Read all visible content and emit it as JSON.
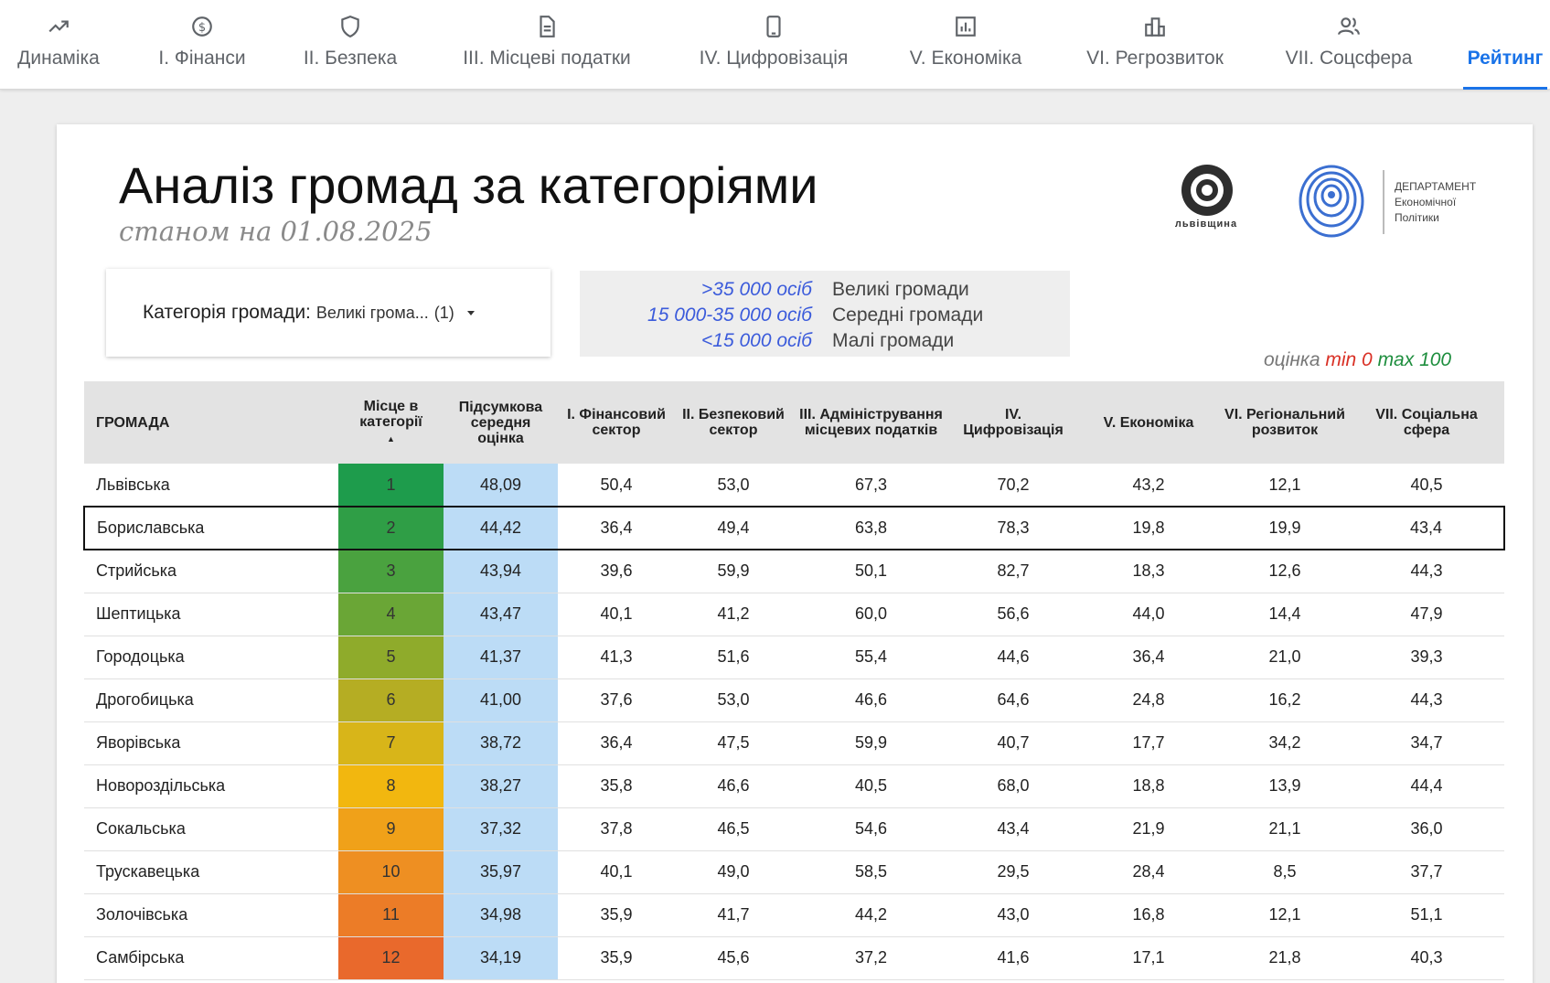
{
  "nav": {
    "tabs": [
      {
        "label": "Динаміка",
        "icon": "trend-icon",
        "active": false
      },
      {
        "label": "І. Фінанси",
        "icon": "coin-icon",
        "active": false
      },
      {
        "label": "ІІ. Безпека",
        "icon": "shield-icon",
        "active": false
      },
      {
        "label": "ІІІ. Місцеві податки",
        "icon": "document-icon",
        "active": false
      },
      {
        "label": "IV. Цифровізація",
        "icon": "phone-icon",
        "active": false
      },
      {
        "label": "V. Економіка",
        "icon": "chart-box-icon",
        "active": false
      },
      {
        "label": "VI. Регрозвиток",
        "icon": "buildings-icon",
        "active": false
      },
      {
        "label": "VII. Соцсфера",
        "icon": "people-icon",
        "active": false
      },
      {
        "label": "Рейтинг",
        "icon": "",
        "active": true
      }
    ],
    "accent": "#1a73e8"
  },
  "header": {
    "title": "Аналіз громад за категоріями",
    "subtitle": "станом на 01.08.2025"
  },
  "logos": {
    "lviv_text": "львівщина",
    "dept_lines": [
      "ДЕПАРТАМЕНТ",
      "Економічної",
      "Політики"
    ]
  },
  "filter": {
    "label": "Категорія громади:",
    "value": "Великі грома...",
    "count": "(1)"
  },
  "legend": [
    {
      "range": ">35 000 осіб",
      "name": "Великі громади"
    },
    {
      "range": "15 000-35 000 осіб",
      "name": "Середні громади"
    },
    {
      "range": "<15 000 осіб",
      "name": "Малі громади"
    }
  ],
  "score": {
    "prefix": "оцінка",
    "min_label": "min 0",
    "max_label": "max 100"
  },
  "table": {
    "columns": [
      "ГРОМАДА",
      "Місце в категорії",
      "Підсумкова середня оцінка",
      "І. Фінансовий сектор",
      "ІІ. Безпековий сектор",
      "ІІІ. Адміністрування місцевих податків",
      "IV. Цифровізація",
      "V. Економіка",
      "VI. Регіональний розвиток",
      "VII. Соціальна сфера"
    ],
    "rows": [
      {
        "name": "Львівська",
        "rank": "1",
        "avg": "48,09",
        "v": [
          "50,4",
          "53,0",
          "67,3",
          "70,2",
          "43,2",
          "12,1",
          "40,5"
        ],
        "color": "#1e9c4c"
      },
      {
        "name": "Бориславська",
        "rank": "2",
        "avg": "44,42",
        "v": [
          "36,4",
          "49,4",
          "63,8",
          "78,3",
          "19,8",
          "19,9",
          "43,4"
        ],
        "color": "#2f9e46",
        "selected": true
      },
      {
        "name": "Стрийська",
        "rank": "3",
        "avg": "43,94",
        "v": [
          "39,6",
          "59,9",
          "50,1",
          "82,7",
          "18,3",
          "12,6",
          "44,3"
        ],
        "color": "#4aa23f"
      },
      {
        "name": "Шептицька",
        "rank": "4",
        "avg": "43,47",
        "v": [
          "40,1",
          "41,2",
          "60,0",
          "56,6",
          "44,0",
          "14,4",
          "47,9"
        ],
        "color": "#6aa636"
      },
      {
        "name": "Городоцька",
        "rank": "5",
        "avg": "41,37",
        "v": [
          "41,3",
          "51,6",
          "55,4",
          "44,6",
          "36,4",
          "21,0",
          "39,3"
        ],
        "color": "#8fab2b"
      },
      {
        "name": "Дрогобицька",
        "rank": "6",
        "avg": "41,00",
        "v": [
          "37,6",
          "53,0",
          "46,6",
          "64,6",
          "24,8",
          "16,2",
          "44,3"
        ],
        "color": "#b5ad23"
      },
      {
        "name": "Яворівська",
        "rank": "7",
        "avg": "38,72",
        "v": [
          "36,4",
          "47,5",
          "59,9",
          "40,7",
          "17,7",
          "34,2",
          "34,7"
        ],
        "color": "#d8b519"
      },
      {
        "name": "Новороздільська",
        "rank": "8",
        "avg": "38,27",
        "v": [
          "35,8",
          "46,6",
          "40,5",
          "68,0",
          "18,8",
          "13,9",
          "44,4"
        ],
        "color": "#f2b70f"
      },
      {
        "name": "Сокальська",
        "rank": "9",
        "avg": "37,32",
        "v": [
          "37,8",
          "46,5",
          "54,6",
          "43,4",
          "21,9",
          "21,1",
          "36,0"
        ],
        "color": "#f0a119"
      },
      {
        "name": "Трускавецька",
        "rank": "10",
        "avg": "35,97",
        "v": [
          "40,1",
          "49,0",
          "58,5",
          "29,5",
          "28,4",
          "8,5",
          "37,7"
        ],
        "color": "#ee8f22"
      },
      {
        "name": "Золочівська",
        "rank": "11",
        "avg": "34,98",
        "v": [
          "35,9",
          "41,7",
          "44,2",
          "43,0",
          "16,8",
          "12,1",
          "51,1"
        ],
        "color": "#ec7c27"
      },
      {
        "name": "Самбірська",
        "rank": "12",
        "avg": "34,19",
        "v": [
          "35,9",
          "45,6",
          "37,2",
          "41,6",
          "17,1",
          "21,8",
          "40,3"
        ],
        "color": "#e9692c"
      }
    ]
  }
}
